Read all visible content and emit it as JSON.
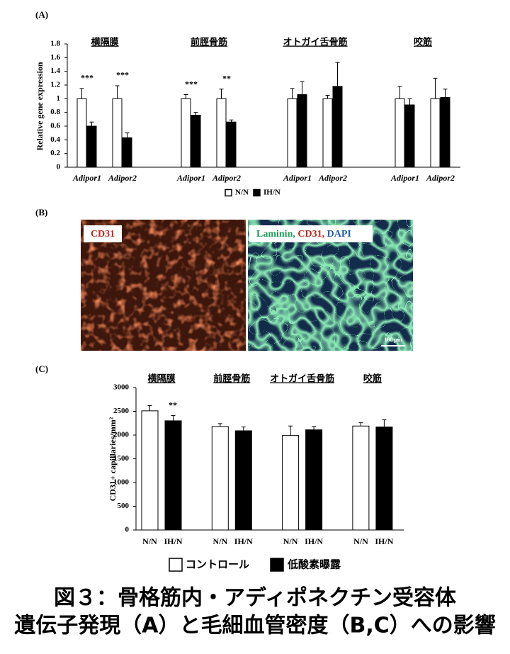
{
  "chart_data": [
    {
      "type": "bar",
      "panel_label": "(A)",
      "y_label": "Relative gene expression",
      "groups": [
        "横隔膜",
        "前脛骨筋",
        "オトガイ舌骨筋",
        "咬筋"
      ],
      "categories": [
        "Adipor1",
        "Adipor2",
        "Adipor1",
        "Adipor2",
        "Adipor1",
        "Adipor2",
        "Adipor1",
        "Adipor2"
      ],
      "series": [
        {
          "name": "N/N",
          "color": "#ffffff",
          "values": [
            1,
            1,
            1,
            1,
            1,
            1,
            1,
            1
          ],
          "errors": [
            0.15,
            0.19,
            0.06,
            0.14,
            0.15,
            0.05,
            0.18,
            0.3
          ]
        },
        {
          "name": "IH/N",
          "color": "#000000",
          "values": [
            0.6,
            0.43,
            0.76,
            0.66,
            1.06,
            1.18,
            0.91,
            1.02
          ],
          "errors": [
            0.06,
            0.07,
            0.04,
            0.03,
            0.19,
            0.35,
            0.09,
            0.12
          ]
        }
      ],
      "significance": [
        "***",
        "***",
        "***",
        "**",
        null,
        null,
        null,
        null
      ],
      "ylim": [
        0,
        1.8
      ],
      "yticks": [
        0,
        0.2,
        0.4,
        0.6,
        0.8,
        1,
        1.2,
        1.4,
        1.6,
        1.8
      ]
    },
    {
      "type": "bar",
      "panel_label": "(C)",
      "y_label": "CD31+ capillaries/mm²",
      "categories": [
        "横隔膜",
        "前脛骨筋",
        "オトガイ舌骨筋",
        "咬筋"
      ],
      "bar_labels": [
        "N/N",
        "IH/N"
      ],
      "series": [
        {
          "name": "コントロール",
          "color": "#ffffff",
          "values": [
            2510,
            2180,
            1990,
            2190
          ],
          "errors": [
            110,
            60,
            200,
            70
          ]
        },
        {
          "name": "低酸素曝露",
          "color": "#000000",
          "values": [
            2300,
            2090,
            2110,
            2170
          ],
          "errors": [
            110,
            80,
            70,
            150
          ]
        }
      ],
      "significance": [
        "**",
        null,
        null,
        null
      ],
      "ylim": [
        0,
        3000
      ],
      "yticks": [
        0,
        500,
        1000,
        1500,
        2000,
        2500,
        3000
      ]
    }
  ],
  "panel_b": {
    "panel_label": "(B)",
    "left_label": "CD31",
    "right_label": [
      "Laminin,",
      "CD31,",
      "DAPI"
    ],
    "scale_bar": "100 µm"
  },
  "caption": [
    "図３：骨格筋内・アディポネクチン受容体",
    "遺伝子発現（A）と毛細血管密度（B,C）への影響"
  ]
}
